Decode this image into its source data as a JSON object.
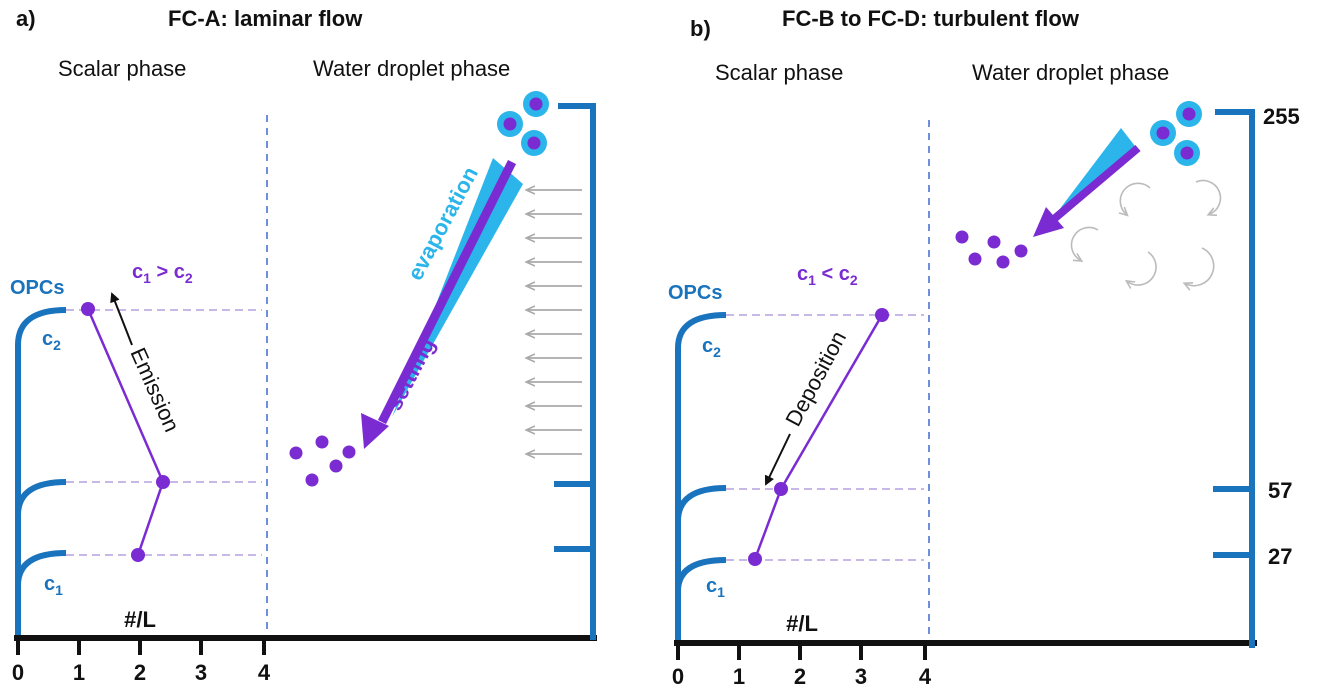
{
  "panel_a": {
    "letter": "a)",
    "title": "FC-A: laminar flow",
    "scalar_heading": "Scalar phase",
    "droplet_heading": "Water droplet phase",
    "opcs_label": "OPCs",
    "c2_label": "c",
    "c2_sub": "2",
    "c1_label": "c",
    "c1_sub": "1",
    "relation": {
      "left": "c",
      "left_sub": "1",
      "op": " > ",
      "right": "c",
      "right_sub": "2"
    },
    "process_label": "Emission",
    "evaporation_label": "evaporation",
    "settling_label": "settling",
    "x_axis_label": "#/L",
    "x_ticks": [
      "0",
      "1",
      "2",
      "3",
      "4"
    ],
    "flow": "laminar"
  },
  "panel_b": {
    "letter": "b)",
    "title": "FC-B to FC-D: turbulent flow",
    "scalar_heading": "Scalar phase",
    "droplet_heading": "Water droplet phase",
    "opcs_label": "OPCs",
    "c2_label": "c",
    "c2_sub": "2",
    "c1_label": "c",
    "c1_sub": "1",
    "relation": {
      "left": "c",
      "left_sub": "1",
      "op": " < ",
      "right": "c",
      "right_sub": "2"
    },
    "process_label": "Deposition",
    "x_axis_label": "#/L",
    "x_ticks": [
      "0",
      "1",
      "2",
      "3",
      "4"
    ],
    "height_ticks": [
      "255",
      "57",
      "27"
    ],
    "flow": "turbulent"
  },
  "colors": {
    "blue": "#1a73bd",
    "purple": "#7a2bd1",
    "cyan": "#2bb5ea",
    "dashed_line": "#c8b8e8",
    "divider": "#6f8fdc",
    "arrow_gray": "#aaaaaa"
  }
}
